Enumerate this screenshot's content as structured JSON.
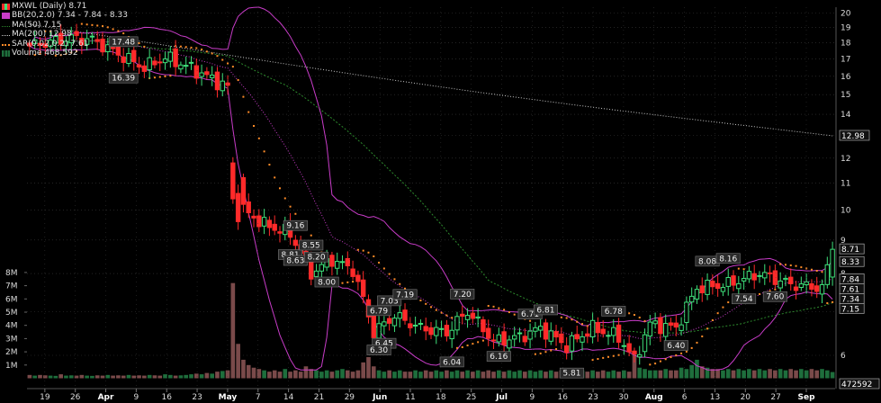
{
  "legend": {
    "title": "MXWL (Daily) 8.71",
    "bb": "BB(20,2.0) 7.34 - 7.84 - 8.33",
    "ma50": "MA(50) 7.15",
    "ma200": "MA(200) 12.98",
    "sar": "SAR(0.02,0.2) 7.61",
    "volume": "Volume 468,592"
  },
  "colors": {
    "up": "#3ee07a",
    "down": "#ff2a2a",
    "bb": "#c83cc8",
    "ma50": "#2d8a2d",
    "ma200": "#c8c8c8",
    "sar": "#ff8c28",
    "volume_down": "#7a4a4a",
    "volume_up": "#1e6e3c",
    "grid": "#3a3a3a",
    "axis_text": "#dcdcdc"
  },
  "chart_data": {
    "type": "candlestick",
    "ticker": "MXWL",
    "price_axis": {
      "scale": "log",
      "ticks": [
        20,
        19,
        18,
        17,
        16,
        15,
        14,
        13,
        12,
        11,
        10,
        9,
        8,
        7,
        6
      ]
    },
    "volume_axis": {
      "ticks": [
        "8M",
        "7M",
        "6M",
        "5M",
        "4M",
        "3M",
        "2M",
        "1M"
      ],
      "values": [
        8,
        7,
        6,
        5,
        4,
        3,
        2,
        1
      ]
    },
    "x_ticks": [
      "19",
      "26",
      "Apr",
      "9",
      "16",
      "23",
      "May",
      "7",
      "14",
      "21",
      "29",
      "Jun",
      "11",
      "18",
      "25",
      "Jul",
      "9",
      "16",
      "23",
      "30",
      "Aug",
      "6",
      "13",
      "20",
      "27",
      "Sep"
    ],
    "right_labels": [
      {
        "text": "12.98",
        "value": 12.98
      },
      {
        "text": "8.71",
        "value": 8.71
      },
      {
        "text": "8.33",
        "value": 8.33
      },
      {
        "text": "7.84",
        "value": 7.84
      },
      {
        "text": "7.61",
        "value": 7.61
      },
      {
        "text": "7.34",
        "value": 7.34
      },
      {
        "text": "7.15",
        "value": 7.15
      }
    ],
    "annotations": [
      {
        "text": "17.48",
        "value": 17.48,
        "position": "above"
      },
      {
        "text": "16.39",
        "value": 16.39,
        "position": "below"
      },
      {
        "text": "8.81",
        "value": 8.81,
        "position": "below"
      },
      {
        "text": "9.16",
        "value": 9.16,
        "position": "above"
      },
      {
        "text": "8.63",
        "value": 8.63,
        "position": "below"
      },
      {
        "text": "8.55",
        "value": 8.55,
        "position": "above"
      },
      {
        "text": "8.00",
        "value": 8.0,
        "position": "below"
      },
      {
        "text": "8.20",
        "value": 8.2,
        "position": "above"
      },
      {
        "text": "6.45",
        "value": 6.45,
        "position": "below"
      },
      {
        "text": "7.03",
        "value": 7.03,
        "position": "above"
      },
      {
        "text": "6.79",
        "value": 6.79,
        "position": "above"
      },
      {
        "text": "6.30",
        "value": 6.3,
        "position": "below"
      },
      {
        "text": "7.19",
        "value": 7.19,
        "position": "above"
      },
      {
        "text": "6.04",
        "value": 6.04,
        "position": "below"
      },
      {
        "text": "7.20",
        "value": 7.2,
        "position": "above"
      },
      {
        "text": "6.16",
        "value": 6.16,
        "position": "below"
      },
      {
        "text": "6.71",
        "value": 6.71,
        "position": "above"
      },
      {
        "text": "6.81",
        "value": 6.81,
        "position": "above"
      },
      {
        "text": "5.81",
        "value": 5.81,
        "position": "below"
      },
      {
        "text": "6.78",
        "value": 6.78,
        "position": "above"
      },
      {
        "text": "6.40",
        "value": 6.4,
        "position": "below"
      },
      {
        "text": "8.08",
        "value": 8.08,
        "position": "above"
      },
      {
        "text": "8.16",
        "value": 8.16,
        "position": "above"
      },
      {
        "text": "7.54",
        "value": 7.54,
        "position": "below"
      },
      {
        "text": "7.60",
        "value": 7.6,
        "position": "below"
      }
    ],
    "anchors": [
      [
        0,
        17.8
      ],
      [
        8,
        18.3
      ],
      [
        12,
        18.2
      ],
      [
        17,
        17.3
      ],
      [
        22,
        16.5
      ],
      [
        26,
        17.1
      ],
      [
        30,
        16.6
      ],
      [
        38,
        15.4
      ],
      [
        40,
        11.5
      ],
      [
        41,
        10.0
      ],
      [
        45,
        9.5
      ],
      [
        50,
        9.2
      ],
      [
        54,
        8.0
      ],
      [
        58,
        8.4
      ],
      [
        62,
        8.1
      ],
      [
        66,
        6.5
      ],
      [
        70,
        6.9
      ],
      [
        75,
        6.6
      ],
      [
        80,
        6.5
      ],
      [
        84,
        7.0
      ],
      [
        89,
        6.3
      ],
      [
        94,
        6.4
      ],
      [
        98,
        6.6
      ],
      [
        103,
        6.2
      ],
      [
        108,
        6.6
      ],
      [
        113,
        6.4
      ],
      [
        116,
        5.9
      ],
      [
        119,
        6.7
      ],
      [
        124,
        6.6
      ],
      [
        128,
        7.6
      ],
      [
        134,
        7.7
      ],
      [
        140,
        8.0
      ],
      [
        146,
        7.7
      ],
      [
        152,
        7.6
      ],
      [
        154,
        8.71
      ]
    ],
    "volumes_m": [
      0.25,
      0.2,
      0.25,
      0.22,
      0.2,
      0.18,
      0.3,
      0.2,
      0.22,
      0.2,
      0.25,
      0.2,
      0.18,
      0.22,
      0.2,
      0.25,
      0.2,
      0.22,
      0.2,
      0.25,
      0.2,
      0.22,
      0.2,
      0.25,
      0.22,
      0.2,
      0.3,
      0.25,
      0.2,
      0.22,
      0.25,
      0.3,
      0.35,
      0.3,
      0.4,
      0.35,
      0.5,
      0.55,
      0.6,
      7.2,
      2.6,
      1.4,
      1.0,
      0.8,
      0.7,
      0.6,
      0.5,
      0.6,
      0.5,
      0.7,
      0.5,
      0.6,
      0.5,
      0.9,
      0.7,
      0.6,
      0.5,
      0.6,
      0.5,
      0.6,
      0.7,
      0.6,
      0.5,
      0.6,
      1.2,
      1.6,
      0.9,
      0.6,
      0.5,
      0.6,
      0.5,
      0.6,
      0.5,
      0.5,
      0.6,
      0.5,
      0.6,
      0.5,
      0.6,
      0.5,
      0.6,
      0.5,
      0.6,
      0.5,
      0.6,
      0.5,
      0.6,
      0.5,
      0.6,
      0.5,
      0.6,
      0.5,
      0.6,
      0.5,
      0.6,
      0.5,
      0.6,
      0.5,
      0.6,
      0.5,
      0.6,
      0.5,
      0.6,
      0.5,
      0.6,
      0.5,
      0.6,
      0.5,
      0.6,
      0.5,
      0.6,
      0.5,
      0.6,
      0.5,
      0.6,
      0.5,
      1.8,
      0.8,
      0.7,
      0.6,
      0.6,
      0.6,
      0.7,
      0.6,
      0.6,
      0.8,
      0.7,
      1.0,
      1.4,
      0.9,
      0.8,
      0.7,
      0.7,
      0.6,
      0.7,
      0.6,
      0.7,
      0.6,
      0.7,
      0.6,
      0.7,
      0.6,
      0.7,
      0.6,
      0.7,
      0.6,
      0.7,
      0.6,
      0.7,
      0.6,
      0.7,
      0.6,
      0.7,
      0.6,
      0.47
    ]
  }
}
